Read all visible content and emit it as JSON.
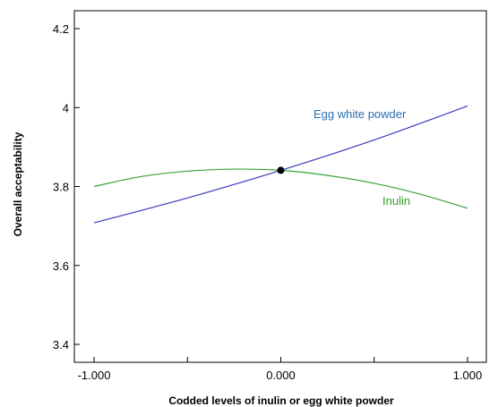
{
  "chart_data": {
    "type": "line",
    "xlabel": "Codded levels of inulin or egg white powder",
    "ylabel": "Overall acceptability",
    "xlim": [
      -1.0,
      1.0
    ],
    "ylim": [
      3.36,
      4.24
    ],
    "x_ticks": [
      -1.0,
      -0.5,
      0.0,
      0.5,
      1.0
    ],
    "x_tick_labels": [
      "-1.000",
      "",
      "0.000",
      "",
      "1.000"
    ],
    "y_ticks": [
      3.4,
      3.6,
      3.8,
      4.0,
      4.2
    ],
    "y_tick_labels": [
      "3.4",
      "3.6",
      "3.8",
      "4",
      "4.2"
    ],
    "grid": false,
    "series": [
      {
        "name": "Egg white powder",
        "color": "#3b3bbf",
        "label_color": "#2a6fb0",
        "x": [
          -1.0,
          -0.5,
          0.0,
          0.5,
          1.0
        ],
        "y": [
          3.708,
          3.771,
          3.841,
          3.918,
          4.004
        ]
      },
      {
        "name": "Inulin",
        "color": "#3aa33a",
        "label_color": "#2e9e2e",
        "x": [
          -1.0,
          -0.75,
          -0.5,
          -0.25,
          0.0,
          0.25,
          0.5,
          0.75,
          1.0
        ],
        "y": [
          3.8,
          3.825,
          3.839,
          3.844,
          3.841,
          3.828,
          3.808,
          3.78,
          3.745
        ]
      }
    ],
    "center_point": {
      "x": 0.0,
      "y": 3.841
    }
  }
}
